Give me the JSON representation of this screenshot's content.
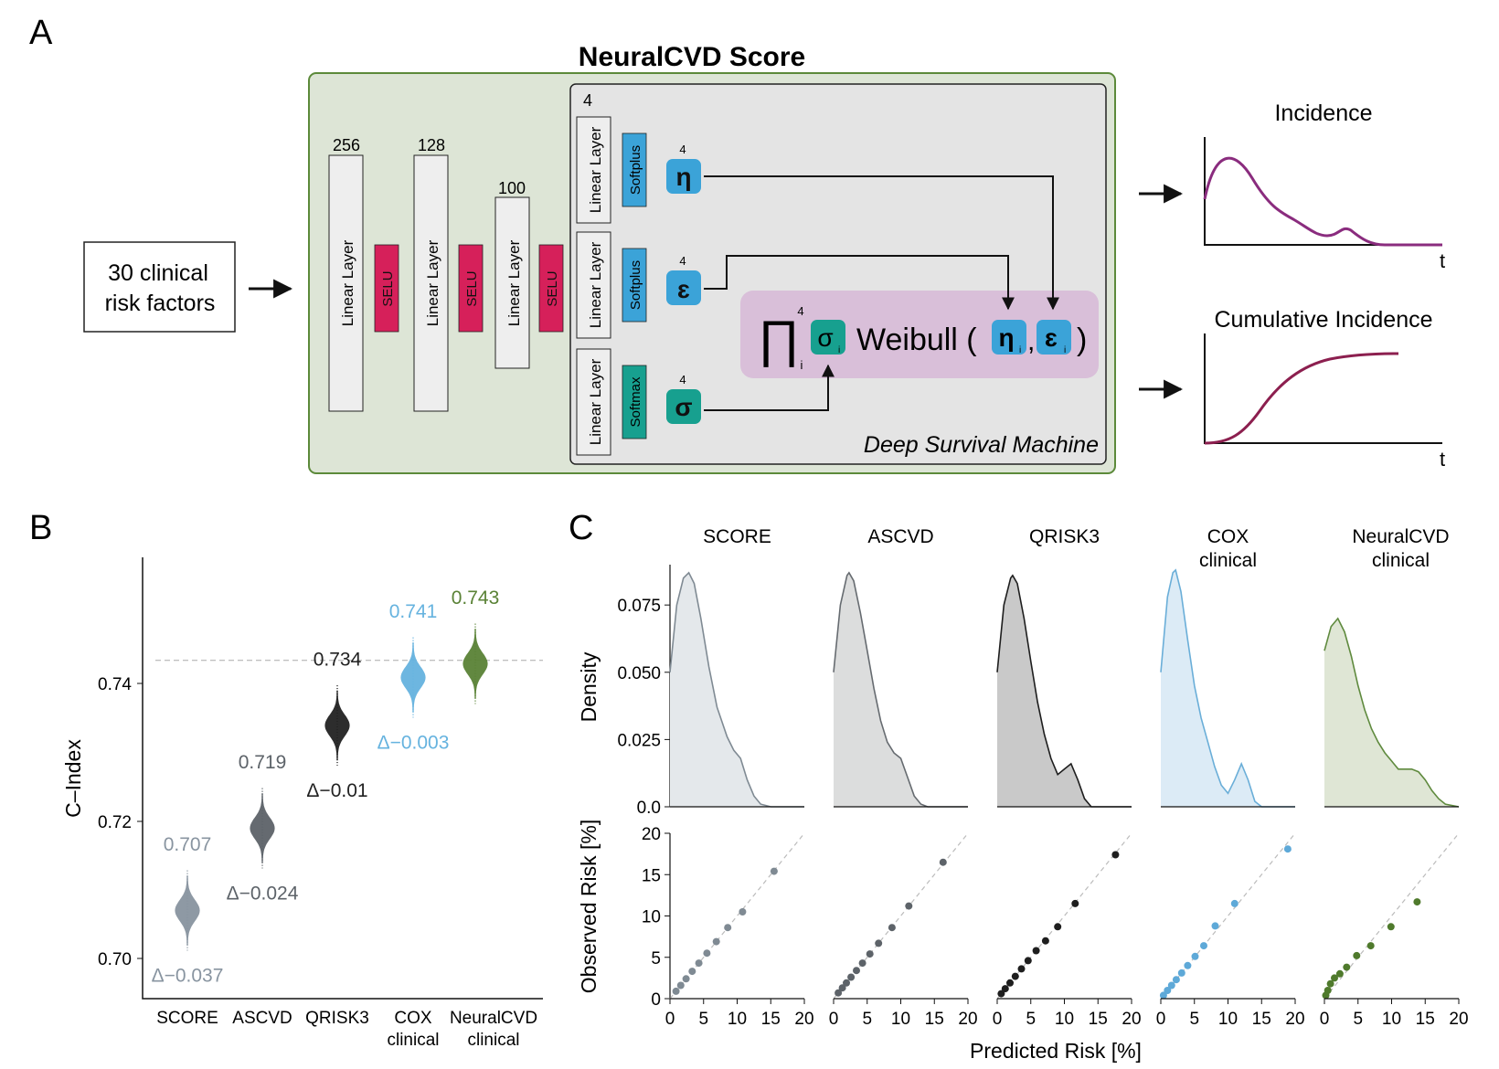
{
  "panel_a": {
    "letter": "A",
    "title": "NeuralCVD Score",
    "input_line1": "30 clinical",
    "input_line2": "risk factors",
    "layers": [
      {
        "size": "256",
        "label": "Linear Layer",
        "act": "SELU"
      },
      {
        "size": "128",
        "label": "Linear Layer",
        "act": "SELU"
      },
      {
        "size": "100",
        "label": "Linear Layer",
        "act": "SELU"
      }
    ],
    "dsm_count": "4",
    "heads": [
      {
        "label": "Linear Layer",
        "act": "Softplus",
        "param": "η",
        "dim": "4",
        "color": "#3ba3d8"
      },
      {
        "label": "Linear Layer",
        "act": "Softplus",
        "param": "ɛ",
        "dim": "4",
        "color": "#3ba3d8"
      },
      {
        "label": "Linear Layer",
        "act": "Softmax",
        "param": "σ",
        "dim": "4",
        "color": "#17a08f"
      }
    ],
    "formula": {
      "prod": "∏",
      "sup": "4",
      "sub": "i",
      "sigma": "σ",
      "weibull": "Weibull (",
      "eta": "η",
      "comma": ",",
      "eps": "ɛ",
      "close": ")"
    },
    "dsm_label": "Deep Survival Machine",
    "incidence_title": "Incidence",
    "cumulative_title": "Cumulative Incidence",
    "t_label": "t",
    "colors": {
      "green_box": "#dde5d6",
      "grey_box": "#e4e4e4",
      "pink_box": "#d9bfd9",
      "selu": "#d6205a",
      "incidence": "#8a2c7e",
      "cumulative": "#8c1f4f"
    }
  },
  "panel_b": {
    "letter": "B",
    "ylabel": "C–Index",
    "yticks": [
      "0.70",
      "0.72",
      "0.74"
    ],
    "models": [
      {
        "name1": "SCORE",
        "name2": "",
        "value": 0.707,
        "value_label": "0.707",
        "delta": "Δ−0.037",
        "color": "#8894a0"
      },
      {
        "name1": "ASCVD",
        "name2": "",
        "value": 0.719,
        "value_label": "0.719",
        "delta": "Δ−0.024",
        "color": "#5d6369"
      },
      {
        "name1": "QRISK3",
        "name2": "",
        "value": 0.734,
        "value_label": "0.734",
        "delta": "Δ−0.01",
        "color": "#222222"
      },
      {
        "name1": "COX",
        "name2": "clinical",
        "value": 0.741,
        "value_label": "0.741",
        "delta": "Δ−0.003",
        "color": "#66b3df"
      },
      {
        "name1": "NeuralCVD",
        "name2": "clinical",
        "value": 0.743,
        "value_label": "0.743",
        "delta": "",
        "color": "#5a8236"
      }
    ]
  },
  "panel_c": {
    "letter": "C",
    "density_ylabel": "Density",
    "observed_ylabel": "Observed Risk [%]",
    "xlabel": "Predicted Risk [%]",
    "density_yticks": [
      "0.0",
      "0.025",
      "0.050",
      "0.075"
    ],
    "risk_yticks": [
      "0",
      "5",
      "10",
      "15",
      "20"
    ],
    "xticks": [
      "0",
      "5",
      "10",
      "15",
      "20"
    ]
  },
  "chart_data": [
    {
      "type": "scatter",
      "title": "",
      "ylabel": "C–Index",
      "ylim": [
        0.697,
        0.752
      ],
      "categories": [
        "SCORE",
        "ASCVD",
        "QRISK3",
        "COX clinical",
        "NeuralCVD clinical"
      ],
      "values": [
        0.707,
        0.719,
        0.734,
        0.741,
        0.743
      ],
      "deltas": [
        "Δ−0.037",
        "Δ−0.024",
        "Δ−0.01",
        "Δ−0.003",
        ""
      ],
      "reference_line": 0.7435,
      "grid": false
    },
    {
      "type": "area",
      "ylabel": "Density",
      "ylim": [
        0,
        0.09
      ],
      "xlim": [
        0,
        20
      ],
      "series": [
        {
          "name": "SCORE",
          "color": "#7f8a93",
          "fill": "#e4e8eb",
          "x": [
            0,
            1,
            2,
            2.8,
            3.6,
            4.6,
            5.8,
            7,
            8.5,
            9.5,
            10.5,
            11.5,
            12.5,
            13.5,
            15,
            16,
            20
          ],
          "y": [
            0.05,
            0.075,
            0.085,
            0.087,
            0.083,
            0.07,
            0.052,
            0.037,
            0.026,
            0.021,
            0.018,
            0.01,
            0.004,
            0.001,
            0.0,
            0.0,
            0.0
          ]
        },
        {
          "name": "ASCVD",
          "color": "#666b70",
          "fill": "#dcdddd",
          "x": [
            0,
            1,
            2,
            2.3,
            3,
            4,
            5,
            6,
            7,
            8,
            9,
            10,
            11,
            12,
            13,
            14,
            20
          ],
          "y": [
            0.05,
            0.075,
            0.086,
            0.087,
            0.084,
            0.072,
            0.058,
            0.044,
            0.032,
            0.024,
            0.02,
            0.018,
            0.011,
            0.004,
            0.001,
            0.0,
            0.0
          ]
        },
        {
          "name": "QRISK3",
          "color": "#1e1e1e",
          "fill": "#c9c9c9",
          "x": [
            0,
            1,
            2,
            2.3,
            3,
            4,
            5,
            6,
            7,
            8,
            9,
            10,
            11,
            12,
            13,
            14,
            15,
            20
          ],
          "y": [
            0.05,
            0.075,
            0.085,
            0.086,
            0.083,
            0.07,
            0.054,
            0.039,
            0.027,
            0.018,
            0.012,
            0.014,
            0.016,
            0.01,
            0.003,
            0.0,
            0.0,
            0.0
          ]
        },
        {
          "name": "COX clinical",
          "color": "#6aaed8",
          "fill": "#dcebf6",
          "x": [
            0,
            1,
            1.8,
            2.2,
            3,
            4,
            5,
            6,
            7,
            8,
            9,
            10,
            11,
            12,
            13,
            14,
            15,
            16,
            20
          ],
          "y": [
            0.05,
            0.078,
            0.087,
            0.088,
            0.08,
            0.062,
            0.045,
            0.033,
            0.024,
            0.015,
            0.008,
            0.005,
            0.01,
            0.016,
            0.01,
            0.002,
            0.0,
            0.0,
            0.0
          ]
        },
        {
          "name": "NeuralCVD clinical",
          "color": "#5f8a3e",
          "fill": "#dfe6d5",
          "x": [
            0,
            1,
            2,
            3,
            4,
            5,
            6,
            7,
            8,
            9,
            10,
            11,
            12,
            13,
            14,
            15,
            16,
            17,
            18,
            20
          ],
          "y": [
            0.058,
            0.067,
            0.07,
            0.065,
            0.056,
            0.045,
            0.036,
            0.029,
            0.024,
            0.02,
            0.017,
            0.014,
            0.014,
            0.014,
            0.013,
            0.01,
            0.006,
            0.003,
            0.001,
            0.0
          ]
        }
      ]
    },
    {
      "type": "scatter",
      "xlabel": "Predicted Risk [%]",
      "ylabel": "Observed Risk [%]",
      "xlim": [
        0,
        20
      ],
      "ylim": [
        0,
        20
      ],
      "reference_line": "y=x",
      "series": [
        {
          "name": "SCORE",
          "color": "#7f8a93",
          "x": [
            0.9,
            1.6,
            2.4,
            3.3,
            4.3,
            5.5,
            6.9,
            8.6,
            10.8,
            15.5
          ],
          "y": [
            0.9,
            1.6,
            2.4,
            3.3,
            4.3,
            5.5,
            6.9,
            8.6,
            10.5,
            15.4
          ]
        },
        {
          "name": "ASCVD",
          "color": "#5d6369",
          "x": [
            0.7,
            1.3,
            1.9,
            2.6,
            3.4,
            4.3,
            5.4,
            6.7,
            8.7,
            11.2,
            16.3
          ],
          "y": [
            0.7,
            1.3,
            1.9,
            2.6,
            3.4,
            4.3,
            5.4,
            6.7,
            8.6,
            11.2,
            16.5
          ]
        },
        {
          "name": "QRISK3",
          "color": "#1e1e1e",
          "x": [
            0.6,
            1.2,
            1.9,
            2.7,
            3.6,
            4.6,
            5.8,
            7.2,
            9.0,
            11.6,
            17.6
          ],
          "y": [
            0.6,
            1.2,
            1.9,
            2.7,
            3.6,
            4.6,
            5.8,
            7.0,
            8.7,
            11.5,
            17.4
          ]
        },
        {
          "name": "COX clinical",
          "color": "#5ea9d8",
          "x": [
            0.4,
            1.0,
            1.6,
            2.3,
            3.1,
            4.0,
            5.1,
            6.4,
            8.1,
            11.0,
            18.9
          ],
          "y": [
            0.4,
            1.0,
            1.6,
            2.3,
            3.1,
            4.0,
            5.1,
            6.4,
            8.8,
            11.5,
            18.1
          ]
        },
        {
          "name": "NeuralCVD clinical",
          "color": "#4f7a2c",
          "x": [
            0.2,
            0.5,
            0.9,
            1.5,
            2.3,
            3.3,
            4.8,
            6.9,
            9.9,
            13.8
          ],
          "y": [
            0.4,
            1.0,
            1.8,
            2.5,
            3.0,
            3.8,
            5.2,
            6.4,
            8.7,
            11.7
          ]
        }
      ]
    }
  ]
}
